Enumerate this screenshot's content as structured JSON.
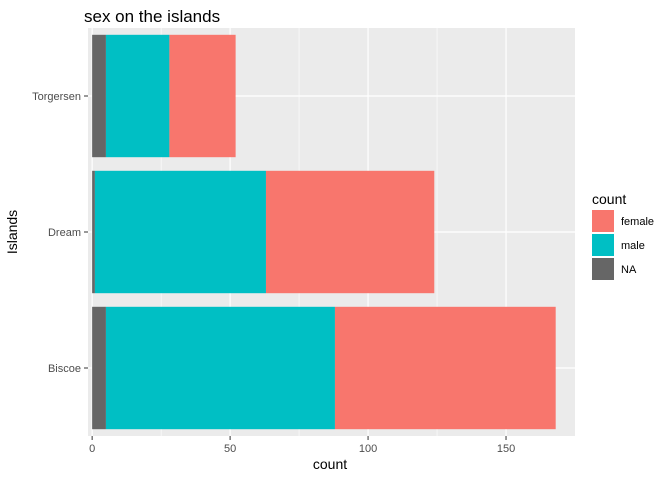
{
  "chart_data": {
    "type": "bar",
    "orientation": "horizontal",
    "stacked": true,
    "title": "sex on the islands",
    "xlabel": "count",
    "ylabel": "Islands",
    "categories": [
      "Biscoe",
      "Dream",
      "Torgersen"
    ],
    "series": [
      {
        "name": "female",
        "color": "#F8766D",
        "values": [
          80,
          61,
          24
        ]
      },
      {
        "name": "male",
        "color": "#00BFC4",
        "values": [
          83,
          62,
          23
        ]
      },
      {
        "name": "NA",
        "color": "#666666",
        "values": [
          5,
          1,
          5
        ]
      }
    ],
    "xlim": [
      0,
      175
    ],
    "xticks": [
      0,
      50,
      100,
      150
    ],
    "grid": true,
    "legend": {
      "title": "count",
      "position": "right"
    },
    "colors": {
      "panel": "#EBEBEB",
      "gridline": "#FFFFFF"
    }
  }
}
